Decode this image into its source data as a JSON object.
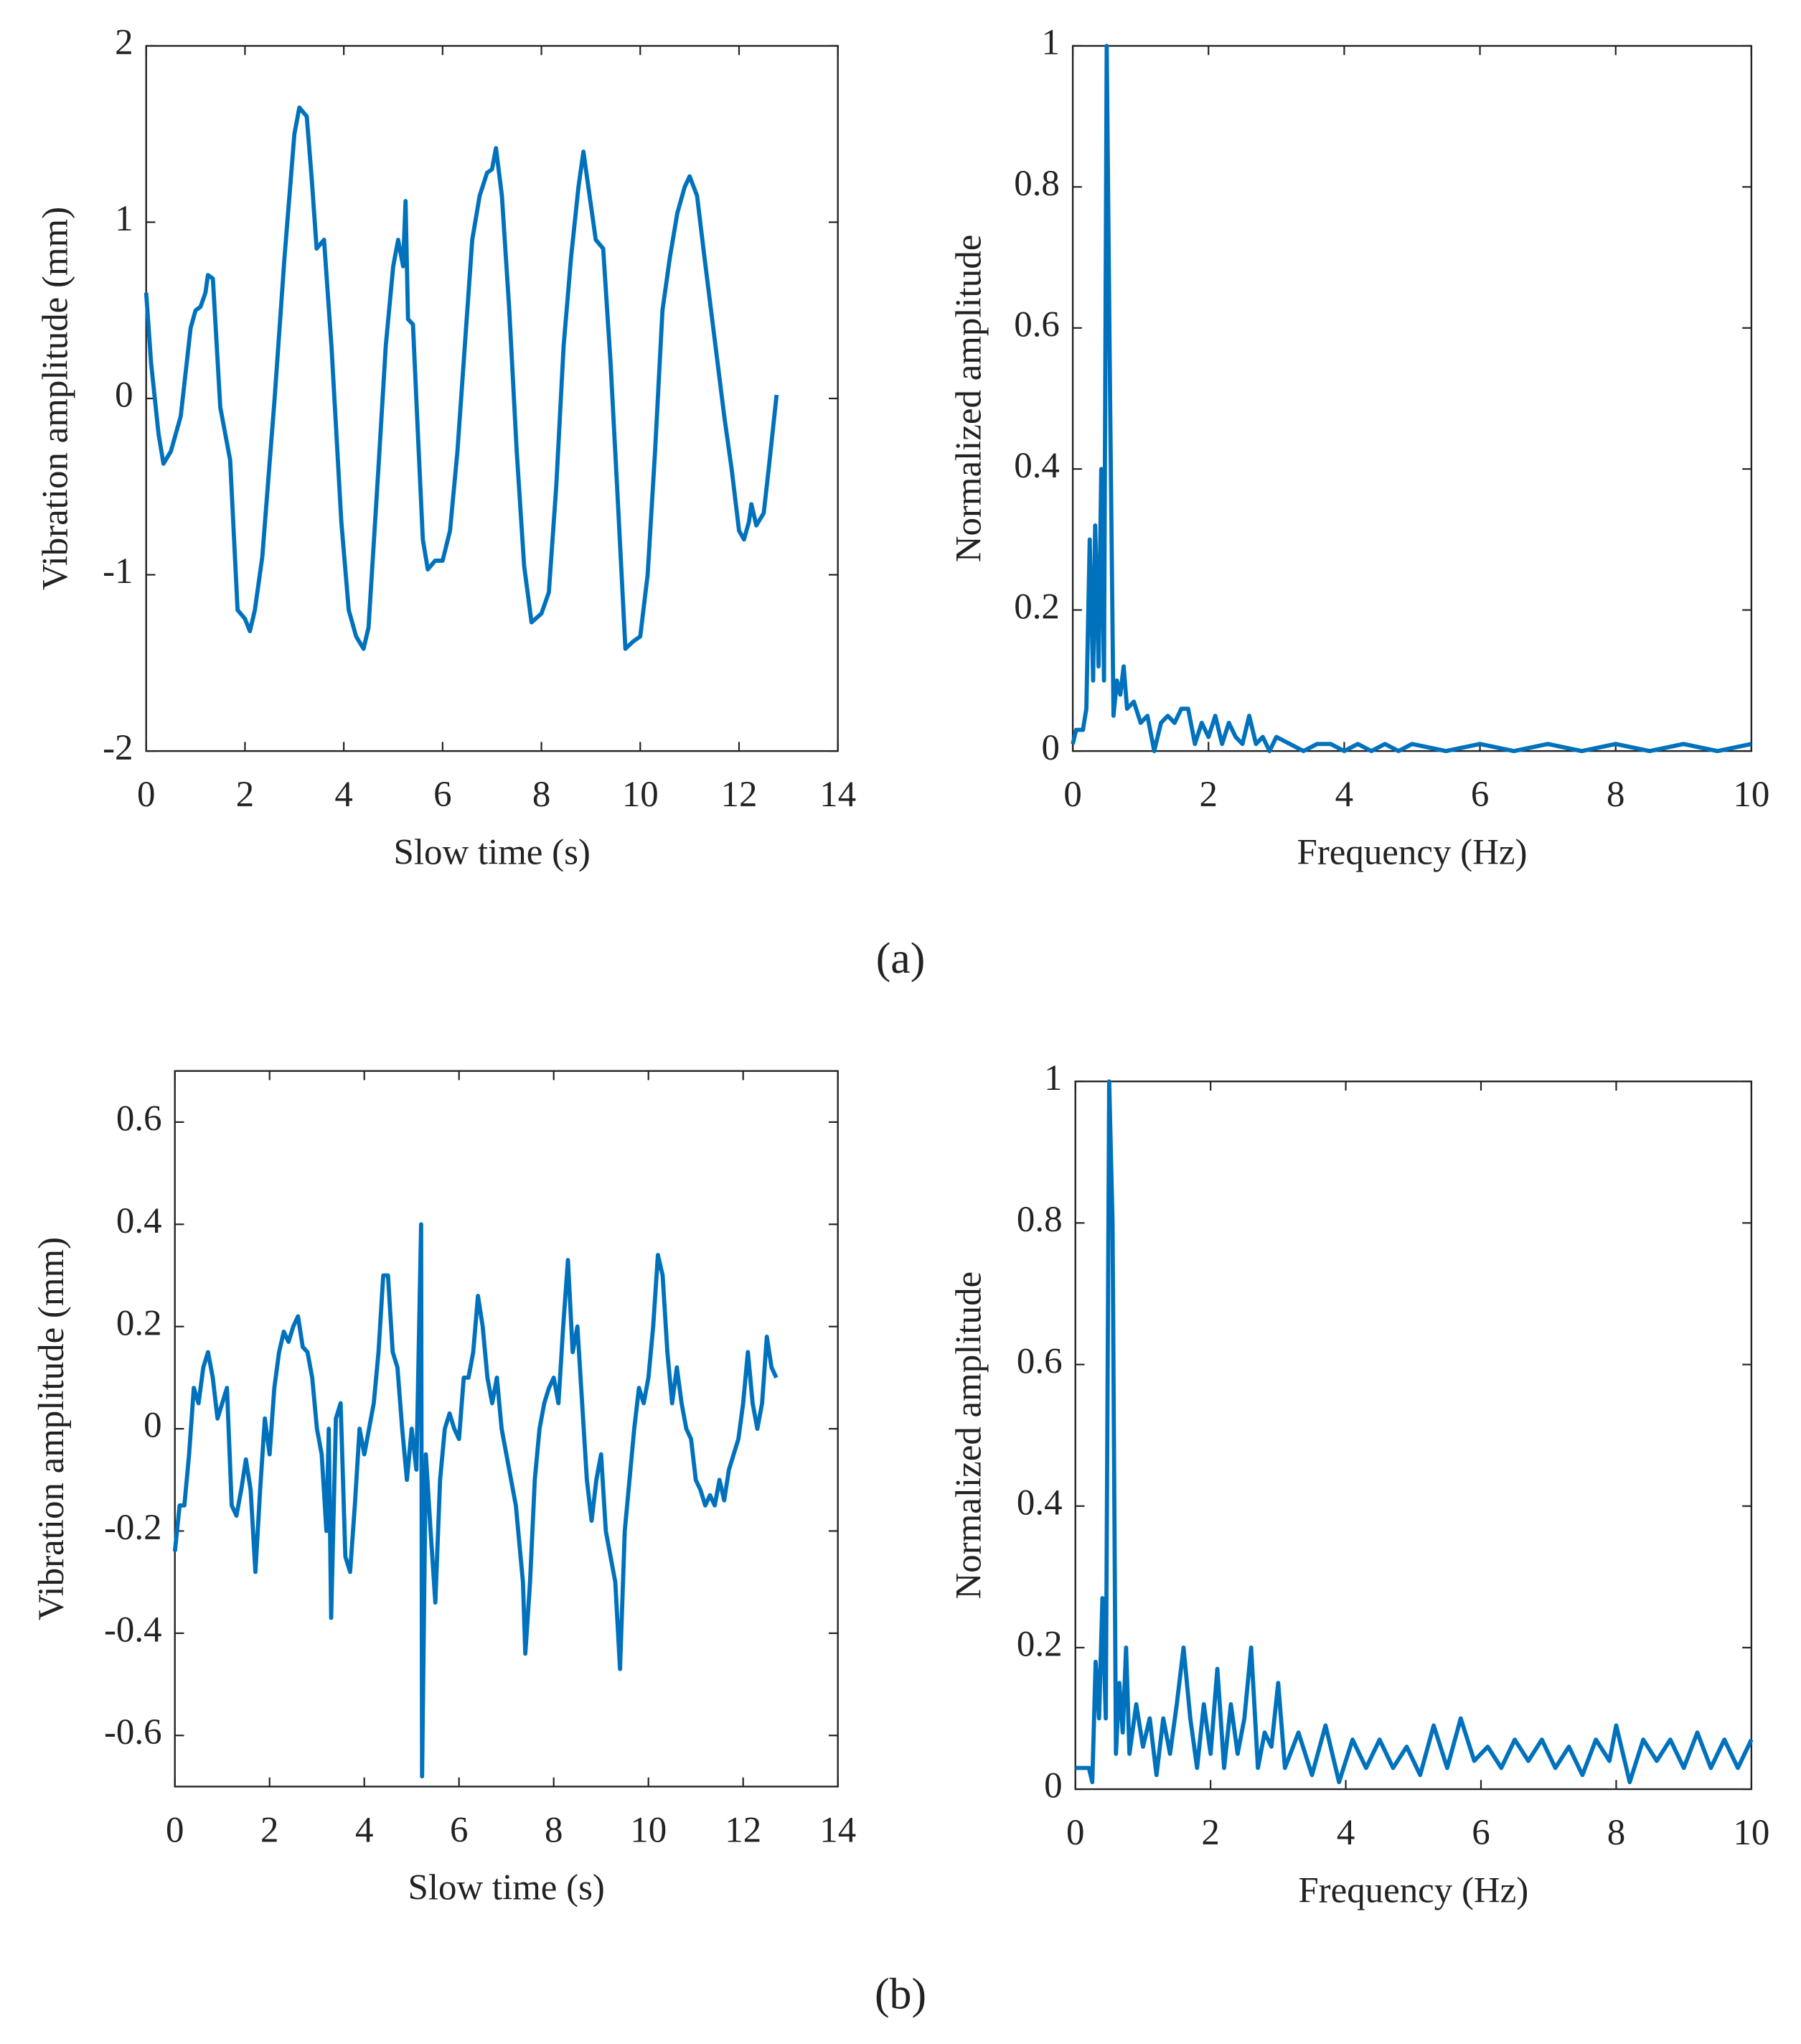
{
  "chart_data": [
    {
      "type": "line",
      "xlabel": "Slow time (s)",
      "ylabel": "Vibration amplitude (mm)",
      "color": "#0072bd",
      "xlim": [
        0,
        14
      ],
      "ylim": [
        -2,
        2
      ],
      "xticks": [
        0,
        2,
        4,
        6,
        8,
        10,
        12,
        14
      ],
      "yticks": [
        -2,
        -1,
        0,
        1,
        2
      ],
      "x": [
        0,
        0.1,
        0.25,
        0.35,
        0.5,
        0.7,
        0.9,
        1.0,
        1.1,
        1.2,
        1.25,
        1.35,
        1.5,
        1.7,
        1.85,
        2.0,
        2.1,
        2.2,
        2.35,
        2.6,
        2.8,
        3.0,
        3.1,
        3.25,
        3.35,
        3.45,
        3.6,
        3.75,
        3.95,
        4.1,
        4.25,
        4.4,
        4.5,
        4.7,
        4.85,
        5.0,
        5.1,
        5.2,
        5.25,
        5.3,
        5.4,
        5.5,
        5.6,
        5.7,
        5.85,
        6.0,
        6.15,
        6.3,
        6.45,
        6.6,
        6.75,
        6.9,
        7.0,
        7.08,
        7.2,
        7.35,
        7.5,
        7.65,
        7.8,
        8.0,
        8.15,
        8.3,
        8.45,
        8.6,
        8.75,
        8.85,
        8.95,
        9.1,
        9.25,
        9.4,
        9.55,
        9.7,
        9.85,
        10.0,
        10.15,
        10.3,
        10.45,
        10.6,
        10.75,
        10.9,
        11.0,
        11.15,
        11.3,
        11.5,
        11.7,
        11.85,
        12.0,
        12.1,
        12.2,
        12.25,
        12.35,
        12.5,
        12.6,
        12.76
      ],
      "values": [
        0.6,
        0.2,
        -0.2,
        -0.37,
        -0.3,
        -0.1,
        0.4,
        0.5,
        0.52,
        0.6,
        0.7,
        0.68,
        -0.05,
        -0.35,
        -1.2,
        -1.25,
        -1.32,
        -1.2,
        -0.9,
        0,
        0.8,
        1.5,
        1.65,
        1.6,
        1.25,
        0.85,
        0.9,
        0.3,
        -0.7,
        -1.2,
        -1.35,
        -1.42,
        -1.3,
        -0.4,
        0.3,
        0.75,
        0.9,
        0.75,
        1.12,
        0.45,
        0.42,
        -0.2,
        -0.8,
        -0.97,
        -0.92,
        -0.92,
        -0.75,
        -0.3,
        0.3,
        0.9,
        1.15,
        1.28,
        1.3,
        1.42,
        1.15,
        0.5,
        -0.3,
        -0.95,
        -1.27,
        -1.22,
        -1.1,
        -0.5,
        0.3,
        0.8,
        1.2,
        1.4,
        1.2,
        0.9,
        0.85,
        0.2,
        -0.6,
        -1.42,
        -1.38,
        -1.35,
        -1.0,
        -0.3,
        0.5,
        0.8,
        1.05,
        1.2,
        1.26,
        1.15,
        0.8,
        0.35,
        -0.1,
        -0.4,
        -0.75,
        -0.8,
        -0.7,
        -0.6,
        -0.72,
        -0.65,
        -0.4,
        0.02
      ]
    },
    {
      "type": "line",
      "xlabel": "Frequency (Hz)",
      "ylabel": "Normalized amplitude",
      "color": "#0072bd",
      "xlim": [
        0,
        10
      ],
      "ylim": [
        0,
        1
      ],
      "xticks": [
        0,
        2,
        4,
        6,
        8,
        10
      ],
      "yticks": [
        0,
        0.2,
        0.4,
        0.6,
        0.8,
        1
      ],
      "x": [
        0,
        0.05,
        0.15,
        0.2,
        0.25,
        0.3,
        0.33,
        0.38,
        0.42,
        0.46,
        0.5,
        0.55,
        0.6,
        0.65,
        0.7,
        0.75,
        0.8,
        0.9,
        1.0,
        1.1,
        1.2,
        1.3,
        1.4,
        1.5,
        1.6,
        1.7,
        1.8,
        1.9,
        2.0,
        2.1,
        2.2,
        2.3,
        2.4,
        2.5,
        2.6,
        2.7,
        2.8,
        2.9,
        3.0,
        3.2,
        3.4,
        3.6,
        3.8,
        4.0,
        4.2,
        4.4,
        4.6,
        4.8,
        5.0,
        5.5,
        6.0,
        6.5,
        7.0,
        7.5,
        8.0,
        8.5,
        9.0,
        9.5,
        10.0
      ],
      "values": [
        0.01,
        0.03,
        0.03,
        0.06,
        0.3,
        0.1,
        0.32,
        0.12,
        0.4,
        0.1,
        1.0,
        0.5,
        0.05,
        0.1,
        0.08,
        0.12,
        0.06,
        0.07,
        0.04,
        0.05,
        0.0,
        0.04,
        0.05,
        0.04,
        0.06,
        0.06,
        0.01,
        0.04,
        0.02,
        0.05,
        0.01,
        0.04,
        0.02,
        0.01,
        0.05,
        0.01,
        0.02,
        0.0,
        0.02,
        0.01,
        0.0,
        0.01,
        0.01,
        0.0,
        0.01,
        0.0,
        0.01,
        0.0,
        0.01,
        0.0,
        0.01,
        0.0,
        0.01,
        0.0,
        0.01,
        0.0,
        0.01,
        0.0,
        0.01
      ]
    },
    {
      "type": "line",
      "xlabel": "Slow time (s)",
      "ylabel": "Vibration amplitude (mm)",
      "color": "#0072bd",
      "xlim": [
        0,
        14
      ],
      "ylim": [
        -0.7,
        0.7
      ],
      "xticks": [
        0,
        2,
        4,
        6,
        8,
        10,
        12,
        14
      ],
      "yticks": [
        -0.6,
        -0.4,
        -0.2,
        0,
        0.2,
        0.4,
        0.6
      ],
      "x": [
        0,
        0.1,
        0.2,
        0.3,
        0.4,
        0.5,
        0.6,
        0.7,
        0.8,
        0.9,
        1.0,
        1.1,
        1.2,
        1.3,
        1.4,
        1.5,
        1.6,
        1.7,
        1.8,
        1.9,
        2.0,
        2.1,
        2.2,
        2.3,
        2.4,
        2.5,
        2.6,
        2.7,
        2.8,
        2.9,
        3.0,
        3.1,
        3.2,
        3.25,
        3.3,
        3.4,
        3.5,
        3.6,
        3.7,
        3.8,
        3.9,
        4.0,
        4.1,
        4.2,
        4.3,
        4.4,
        4.5,
        4.6,
        4.7,
        4.8,
        4.9,
        5.0,
        5.1,
        5.2,
        5.22,
        5.3,
        5.4,
        5.5,
        5.6,
        5.7,
        5.8,
        5.9,
        6.0,
        6.1,
        6.2,
        6.3,
        6.4,
        6.5,
        6.6,
        6.7,
        6.8,
        6.9,
        7.0,
        7.1,
        7.2,
        7.3,
        7.35,
        7.4,
        7.5,
        7.6,
        7.7,
        7.8,
        7.9,
        8.0,
        8.1,
        8.2,
        8.3,
        8.4,
        8.5,
        8.6,
        8.7,
        8.8,
        8.9,
        9.0,
        9.1,
        9.2,
        9.3,
        9.4,
        9.5,
        9.6,
        9.7,
        9.8,
        9.9,
        10.0,
        10.1,
        10.2,
        10.3,
        10.4,
        10.5,
        10.6,
        10.7,
        10.8,
        10.9,
        11.0,
        11.1,
        11.2,
        11.3,
        11.4,
        11.5,
        11.6,
        11.7,
        11.8,
        11.9,
        12.0,
        12.1,
        12.2,
        12.3,
        12.4,
        12.5,
        12.6,
        12.7
      ],
      "values": [
        -0.24,
        -0.15,
        -0.15,
        -0.05,
        0.08,
        0.05,
        0.12,
        0.15,
        0.1,
        0.02,
        0.05,
        0.08,
        -0.15,
        -0.17,
        -0.12,
        -0.06,
        -0.12,
        -0.28,
        -0.12,
        0.02,
        -0.05,
        0.08,
        0.15,
        0.19,
        0.17,
        0.2,
        0.22,
        0.16,
        0.15,
        0.1,
        0.0,
        -0.05,
        -0.2,
        0.0,
        -0.37,
        0.02,
        0.05,
        -0.25,
        -0.28,
        -0.15,
        0.0,
        -0.05,
        0.0,
        0.05,
        0.15,
        0.3,
        0.3,
        0.15,
        0.12,
        0.0,
        -0.1,
        0.0,
        -0.08,
        0.4,
        -0.68,
        -0.05,
        -0.2,
        -0.34,
        -0.1,
        0.0,
        0.03,
        0.0,
        -0.02,
        0.1,
        0.1,
        0.15,
        0.26,
        0.2,
        0.1,
        0.05,
        0.1,
        0.0,
        -0.05,
        -0.1,
        -0.15,
        -0.25,
        -0.3,
        -0.44,
        -0.3,
        -0.1,
        0.0,
        0.05,
        0.08,
        0.1,
        0.05,
        0.2,
        0.33,
        0.15,
        0.2,
        0.05,
        -0.1,
        -0.18,
        -0.1,
        -0.05,
        -0.2,
        -0.25,
        -0.3,
        -0.47,
        -0.2,
        -0.1,
        0.0,
        0.08,
        0.05,
        0.1,
        0.2,
        0.34,
        0.3,
        0.15,
        0.05,
        0.12,
        0.05,
        0.0,
        -0.02,
        -0.1,
        -0.12,
        -0.15,
        -0.13,
        -0.15,
        -0.1,
        -0.14,
        -0.08,
        -0.05,
        -0.02,
        0.05,
        0.15,
        0.05,
        0.0,
        0.05,
        0.18,
        0.12,
        0.1
      ]
    },
    {
      "type": "line",
      "xlabel": "Frequency (Hz)",
      "ylabel": "Normalized amplitude",
      "color": "#0072bd",
      "xlim": [
        0,
        10
      ],
      "ylim": [
        0,
        1
      ],
      "xticks": [
        0,
        2,
        4,
        6,
        8,
        10
      ],
      "yticks": [
        0,
        0.2,
        0.4,
        0.6,
        0.8,
        1
      ],
      "x": [
        0,
        0.1,
        0.2,
        0.25,
        0.3,
        0.35,
        0.4,
        0.45,
        0.5,
        0.55,
        0.6,
        0.65,
        0.7,
        0.75,
        0.8,
        0.9,
        1.0,
        1.1,
        1.2,
        1.3,
        1.4,
        1.5,
        1.6,
        1.7,
        1.8,
        1.9,
        2.0,
        2.1,
        2.2,
        2.3,
        2.4,
        2.5,
        2.6,
        2.7,
        2.8,
        2.9,
        3.0,
        3.1,
        3.3,
        3.5,
        3.7,
        3.9,
        4.1,
        4.3,
        4.5,
        4.7,
        4.9,
        5.1,
        5.3,
        5.5,
        5.7,
        5.9,
        6.1,
        6.3,
        6.5,
        6.7,
        6.9,
        7.1,
        7.3,
        7.5,
        7.7,
        7.9,
        8.0,
        8.2,
        8.4,
        8.6,
        8.8,
        9.0,
        9.2,
        9.4,
        9.6,
        9.8,
        10.0
      ],
      "values": [
        0.03,
        0.03,
        0.03,
        0.01,
        0.18,
        0.1,
        0.27,
        0.1,
        1.0,
        0.8,
        0.05,
        0.15,
        0.08,
        0.2,
        0.05,
        0.12,
        0.06,
        0.1,
        0.02,
        0.1,
        0.05,
        0.12,
        0.2,
        0.1,
        0.03,
        0.12,
        0.05,
        0.17,
        0.03,
        0.12,
        0.05,
        0.1,
        0.2,
        0.03,
        0.08,
        0.06,
        0.15,
        0.03,
        0.08,
        0.02,
        0.09,
        0.01,
        0.07,
        0.03,
        0.07,
        0.03,
        0.06,
        0.02,
        0.09,
        0.03,
        0.1,
        0.04,
        0.06,
        0.03,
        0.07,
        0.04,
        0.07,
        0.03,
        0.06,
        0.02,
        0.07,
        0.04,
        0.09,
        0.01,
        0.07,
        0.04,
        0.07,
        0.03,
        0.08,
        0.03,
        0.07,
        0.03,
        0.07
      ]
    }
  ],
  "captions": [
    "(a)",
    "(b)"
  ]
}
